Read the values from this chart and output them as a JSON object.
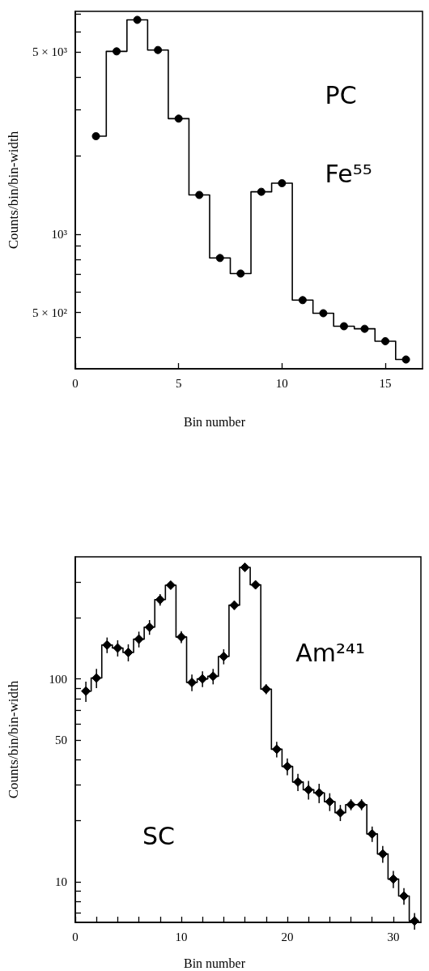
{
  "chart_data": [
    {
      "type": "step",
      "xlabel": "Bin number",
      "ylabel": "Counts/bin/bin-width",
      "annotations": [
        "PC",
        "Fe⁵⁵"
      ],
      "x": [
        1,
        2,
        3,
        4,
        5,
        6,
        7,
        8,
        9,
        10,
        11,
        12,
        13,
        14,
        15,
        16
      ],
      "values": [
        2380,
        5040,
        6660,
        5100,
        2780,
        1415,
        810,
        706,
        1455,
        1570,
        558,
        497,
        443,
        433,
        388,
        330
      ],
      "color": "#000000",
      "marker": "circle",
      "log": "y",
      "xlim": [
        0,
        16.8
      ],
      "xticks": [
        0,
        5,
        10,
        15
      ],
      "ylim": [
        304,
        7180
      ],
      "yticks": [
        {
          "value": 400,
          "label": null
        },
        {
          "value": 500,
          "label": "5 × 10²"
        },
        {
          "value": 600,
          "label": null
        },
        {
          "value": 700,
          "label": null
        },
        {
          "value": 800,
          "label": null
        },
        {
          "value": 900,
          "label": null
        },
        {
          "value": 1000,
          "label": "10³"
        },
        {
          "value": 2000,
          "label": null
        },
        {
          "value": 3000,
          "label": null
        },
        {
          "value": 4000,
          "label": null
        },
        {
          "value": 5000,
          "label": "5 × 10³"
        },
        {
          "value": 6000,
          "label": null
        },
        {
          "value": 7000,
          "label": null
        }
      ]
    },
    {
      "type": "step",
      "xlabel": "Bin number",
      "ylabel": "Counts/bin/bin-width",
      "annotations": [
        "Am²⁴¹",
        "SC"
      ],
      "x": [
        1,
        2,
        3,
        4,
        5,
        6,
        7,
        8,
        9,
        10,
        11,
        12,
        13,
        14,
        15,
        16,
        17,
        18,
        19,
        20,
        21,
        22,
        23,
        24,
        25,
        26,
        27,
        28,
        29,
        30,
        31,
        32
      ],
      "values": [
        87,
        101,
        147,
        142,
        135,
        157,
        180,
        246,
        290,
        161,
        96,
        100,
        103,
        129,
        231,
        355,
        291,
        89,
        45,
        37,
        31,
        28.4,
        27.4,
        24.8,
        21.9,
        24,
        24,
        17.2,
        13.7,
        10.3,
        8.5,
        6.4
      ],
      "errors": [
        10,
        11,
        13,
        13,
        13,
        14,
        15,
        16,
        12,
        11,
        9,
        9,
        9,
        11,
        12,
        10,
        null,
        5,
        4,
        3.5,
        3,
        3,
        3,
        2.5,
        2,
        1.5,
        1.5,
        1.5,
        1.3,
        1,
        0.8,
        0.6
      ],
      "color": "#000000",
      "marker": "diamond",
      "log": "y",
      "xlim": [
        0,
        32.6
      ],
      "xticks": [
        {
          "value": 0,
          "label": "0"
        },
        {
          "value": 2,
          "label": null
        },
        {
          "value": 4,
          "label": null
        },
        {
          "value": 6,
          "label": null
        },
        {
          "value": 8,
          "label": null
        },
        {
          "value": 10,
          "label": "10"
        },
        {
          "value": 12,
          "label": null
        },
        {
          "value": 14,
          "label": null
        },
        {
          "value": 16,
          "label": null
        },
        {
          "value": 18,
          "label": null
        },
        {
          "value": 20,
          "label": "20"
        },
        {
          "value": 22,
          "label": null
        },
        {
          "value": 24,
          "label": null
        },
        {
          "value": 26,
          "label": null
        },
        {
          "value": 28,
          "label": null
        },
        {
          "value": 30,
          "label": "30"
        },
        {
          "value": 32,
          "label": null
        }
      ],
      "ylim": [
        6.3,
        400
      ],
      "yticks": [
        {
          "value": 7,
          "label": null
        },
        {
          "value": 8,
          "label": null
        },
        {
          "value": 9,
          "label": null
        },
        10,
        {
          "value": 20,
          "label": null
        },
        {
          "value": 30,
          "label": null
        },
        {
          "value": 40,
          "label": null
        },
        50,
        {
          "value": 60,
          "label": null
        },
        {
          "value": 70,
          "label": null
        },
        {
          "value": 80,
          "label": null
        },
        {
          "value": 90,
          "label": null
        },
        100,
        {
          "value": 200,
          "label": null
        },
        {
          "value": 300,
          "label": null
        }
      ]
    }
  ]
}
